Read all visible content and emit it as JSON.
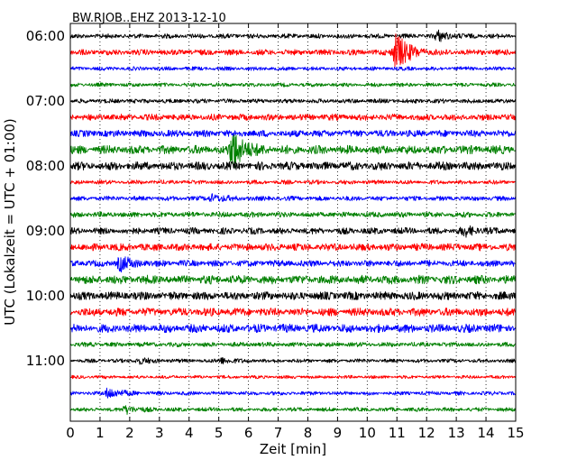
{
  "chart_data": {
    "type": "line",
    "title": "BW.RJOB..EHZ 2013-12-10",
    "xlabel": "Zeit  [min]",
    "ylabel": "UTC (Lokalzeit = UTC + 01:00)",
    "xlim": [
      0,
      15
    ],
    "x_ticks": [
      0,
      1,
      2,
      3,
      4,
      5,
      6,
      7,
      8,
      9,
      10,
      11,
      12,
      13,
      14,
      15
    ],
    "y_tick_labels": [
      "06:00",
      "07:00",
      "08:00",
      "09:00",
      "10:00",
      "11:00"
    ],
    "y_tick_trace_index": [
      0,
      4,
      8,
      12,
      16,
      20
    ],
    "trace_interval_min": 15,
    "grid": true,
    "trace_colors": [
      "#000000",
      "#ff0000",
      "#0000ff",
      "#008000"
    ],
    "traces": [
      {
        "start": "06:00",
        "color": "#000000",
        "amp": 2.5,
        "events": [
          {
            "t": 12.4,
            "amp": 5
          }
        ]
      },
      {
        "start": "06:15",
        "color": "#ff0000",
        "amp": 3,
        "events": [
          {
            "t": 11.0,
            "amp": 22
          }
        ]
      },
      {
        "start": "06:30",
        "color": "#0000ff",
        "amp": 2,
        "events": []
      },
      {
        "start": "06:45",
        "color": "#008000",
        "amp": 2,
        "events": []
      },
      {
        "start": "07:00",
        "color": "#000000",
        "amp": 2.5,
        "events": []
      },
      {
        "start": "07:15",
        "color": "#ff0000",
        "amp": 3.5,
        "events": []
      },
      {
        "start": "07:30",
        "color": "#0000ff",
        "amp": 4,
        "events": []
      },
      {
        "start": "07:45",
        "color": "#008000",
        "amp": 4,
        "events": [
          {
            "t": 5.5,
            "amp": 22
          }
        ]
      },
      {
        "start": "08:00",
        "color": "#000000",
        "amp": 4,
        "events": []
      },
      {
        "start": "08:15",
        "color": "#ff0000",
        "amp": 2,
        "events": []
      },
      {
        "start": "08:30",
        "color": "#0000ff",
        "amp": 2.5,
        "events": [
          {
            "t": 4.8,
            "amp": 4
          }
        ]
      },
      {
        "start": "08:45",
        "color": "#008000",
        "amp": 3,
        "events": []
      },
      {
        "start": "09:00",
        "color": "#000000",
        "amp": 3,
        "events": [
          {
            "t": 13.3,
            "amp": 4
          }
        ]
      },
      {
        "start": "09:15",
        "color": "#ff0000",
        "amp": 4,
        "events": []
      },
      {
        "start": "09:30",
        "color": "#0000ff",
        "amp": 3.5,
        "events": [
          {
            "t": 1.7,
            "amp": 7
          }
        ]
      },
      {
        "start": "09:45",
        "color": "#008000",
        "amp": 4,
        "events": []
      },
      {
        "start": "10:00",
        "color": "#000000",
        "amp": 4.5,
        "events": []
      },
      {
        "start": "10:15",
        "color": "#ff0000",
        "amp": 4,
        "events": []
      },
      {
        "start": "10:30",
        "color": "#0000ff",
        "amp": 4,
        "events": []
      },
      {
        "start": "10:45",
        "color": "#008000",
        "amp": 2.5,
        "events": []
      },
      {
        "start": "11:00",
        "color": "#000000",
        "amp": 2,
        "events": [
          {
            "t": 2.3,
            "amp": 3
          },
          {
            "t": 5.1,
            "amp": 3
          }
        ]
      },
      {
        "start": "11:15",
        "color": "#ff0000",
        "amp": 1.8,
        "events": []
      },
      {
        "start": "11:30",
        "color": "#0000ff",
        "amp": 2,
        "events": [
          {
            "t": 1.3,
            "amp": 6
          }
        ]
      },
      {
        "start": "11:45",
        "color": "#008000",
        "amp": 2,
        "events": [
          {
            "t": 1.9,
            "amp": 4
          }
        ]
      }
    ]
  }
}
